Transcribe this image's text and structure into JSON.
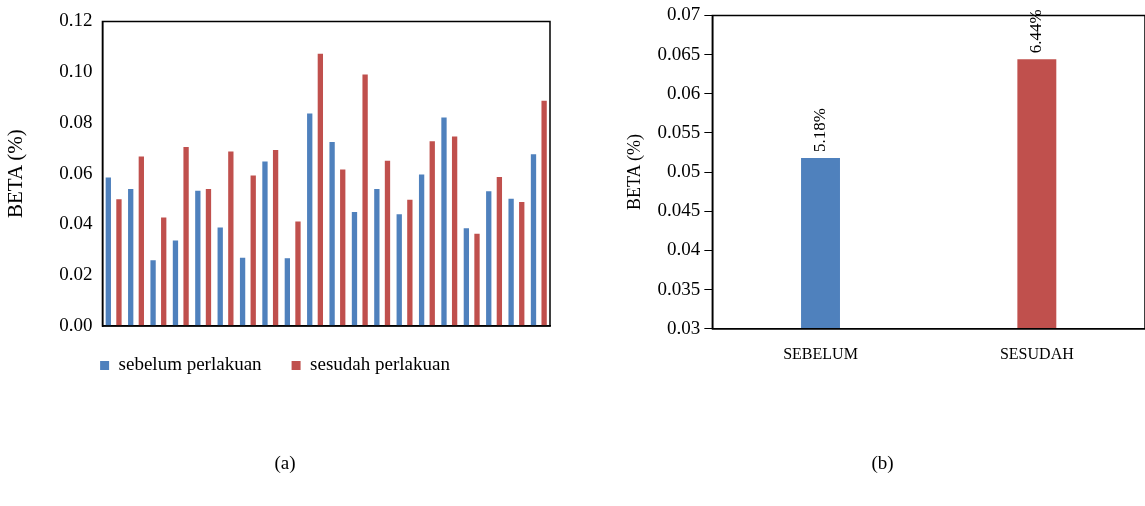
{
  "chart_data": [
    {
      "type": "bar",
      "ylabel": "BETA (%)",
      "categories": [
        null,
        null,
        null,
        null,
        null,
        null,
        null,
        null,
        null,
        null,
        null,
        null,
        null,
        null,
        null,
        null,
        null,
        null,
        null,
        null
      ],
      "series": [
        {
          "name": "sebelum perlakuan",
          "color": "#4f81bd",
          "values": [
            0.0585,
            0.054,
            0.0259,
            0.0337,
            0.0533,
            0.0388,
            0.0269,
            0.0648,
            0.0267,
            0.0837,
            0.0725,
            0.0449,
            0.054,
            0.044,
            0.0597,
            0.0821,
            0.0385,
            0.0531,
            0.0501,
            0.0677
          ]
        },
        {
          "name": "sesudah perlakuan",
          "color": "#c0504d",
          "values": [
            0.0499,
            0.0668,
            0.0427,
            0.0705,
            0.054,
            0.0687,
            0.0593,
            0.0693,
            0.0412,
            0.1073,
            0.0617,
            0.0991,
            0.0651,
            0.0497,
            0.0728,
            0.0747,
            0.0363,
            0.0587,
            0.0489,
            0.0887
          ]
        }
      ],
      "ylim": [
        0,
        0.12
      ],
      "yticks": [
        {
          "value": 0,
          "label": "0.00"
        },
        {
          "value": 0.02,
          "label": "0.02"
        },
        {
          "value": 0.04,
          "label": "0.04"
        },
        {
          "value": 0.06,
          "label": "0.06"
        },
        {
          "value": 0.08,
          "label": "0.08"
        },
        {
          "value": 0.1,
          "label": "0.10"
        },
        {
          "value": 0.12,
          "label": "0.12"
        }
      ],
      "grid": false,
      "legend": "bottom",
      "annotations": [
        "(a)"
      ]
    },
    {
      "type": "bar",
      "ylabel": "BETA (%)",
      "categories": [
        "SEBELUM",
        "SESUDAH"
      ],
      "values": [
        0.0518,
        0.0644
      ],
      "colors": [
        "#4f81bd",
        "#c0504d"
      ],
      "value_labels": [
        "5.18%",
        "6.44%"
      ],
      "ylim": [
        0.03,
        0.07
      ],
      "yticks": [
        0.03,
        0.035,
        0.04,
        0.045,
        0.05,
        0.055,
        0.06,
        0.065,
        0.07
      ],
      "grid": false,
      "legend": false,
      "annotations": [
        "(b)"
      ]
    }
  ]
}
